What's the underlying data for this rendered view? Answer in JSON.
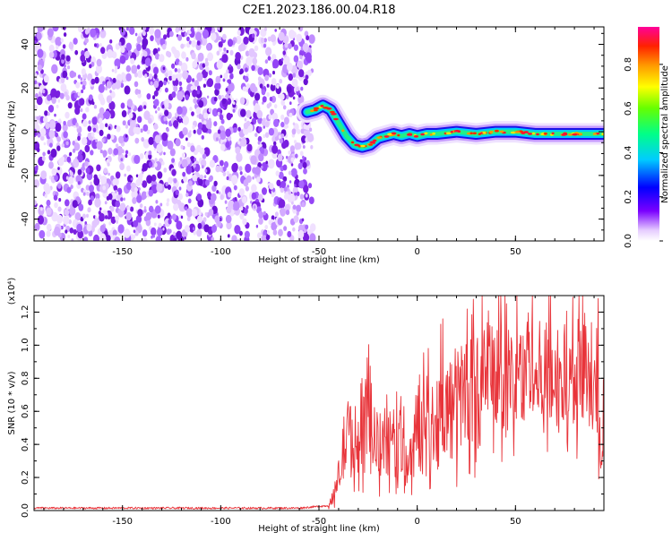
{
  "title": "C2E1.2023.186.00.04.R18",
  "colors": {
    "snr_line": "#e8343a",
    "noise_purple": "#7a1fe0",
    "axis": "#000000"
  },
  "chart_data": [
    {
      "type": "heatmap",
      "xlabel": "Height of straight line (km)",
      "ylabel": "Frequency (Hz)",
      "xlim": [
        -195,
        95
      ],
      "ylim": [
        -50,
        48
      ],
      "xticks": [
        -150,
        -100,
        -50,
        0,
        50
      ],
      "yticks": [
        -40,
        -20,
        0,
        20,
        40
      ],
      "colorbar": {
        "label": "Normalized spectral amplitude",
        "range": [
          0,
          0.97
        ],
        "ticks": [
          0.0,
          0.2,
          0.4,
          0.6,
          0.8
        ],
        "colormap": "rainbow (white, violet, blue, cyan, green, yellow, orange, red, magenta)"
      },
      "noise_region_x": [
        -195,
        -53
      ],
      "signal_track": {
        "x": [
          -56,
          -52,
          -48,
          -44,
          -40,
          -36,
          -32,
          -28,
          -24,
          -20,
          -16,
          -12,
          -8,
          -4,
          0,
          5,
          10,
          20,
          30,
          40,
          50,
          60,
          70,
          80,
          90,
          95
        ],
        "y": [
          9,
          10,
          12,
          10,
          4,
          -2,
          -6,
          -7,
          -6,
          -3,
          -2,
          -1,
          -2,
          -1,
          -2,
          -1,
          -1,
          0,
          -1,
          0,
          0,
          -1,
          -1,
          -1,
          -1,
          -1
        ]
      }
    },
    {
      "type": "line",
      "xlabel": "Height of straight line (km)",
      "ylabel": "SNR (10 * v/v)",
      "yscale_label": "(x10⁴)",
      "xlim": [
        -195,
        95
      ],
      "ylim": [
        0,
        1.3
      ],
      "xticks": [
        -150,
        -100,
        -50,
        0,
        50
      ],
      "yticks": [
        0.0,
        0.2,
        0.4,
        0.6,
        0.8,
        1.0,
        1.2
      ],
      "series": [
        {
          "x": [
            -195,
            -150,
            -100,
            -60,
            -45,
            -42,
            -40,
            -38,
            -35,
            -30,
            -25,
            -20,
            -15,
            -10,
            -5,
            0,
            5,
            10,
            15,
            20,
            25,
            30,
            35,
            40,
            45,
            50,
            55,
            60,
            65,
            70,
            75,
            80,
            85,
            90,
            94
          ],
          "y": [
            0.015,
            0.015,
            0.015,
            0.015,
            0.03,
            0.1,
            0.2,
            0.35,
            0.45,
            0.4,
            0.5,
            0.38,
            0.42,
            0.38,
            0.28,
            0.5,
            0.5,
            0.55,
            0.6,
            0.65,
            0.75,
            0.7,
            0.8,
            0.82,
            0.78,
            0.8,
            0.85,
            0.78,
            0.82,
            0.8,
            0.78,
            0.82,
            0.8,
            0.75,
            0.55
          ]
        }
      ]
    }
  ]
}
